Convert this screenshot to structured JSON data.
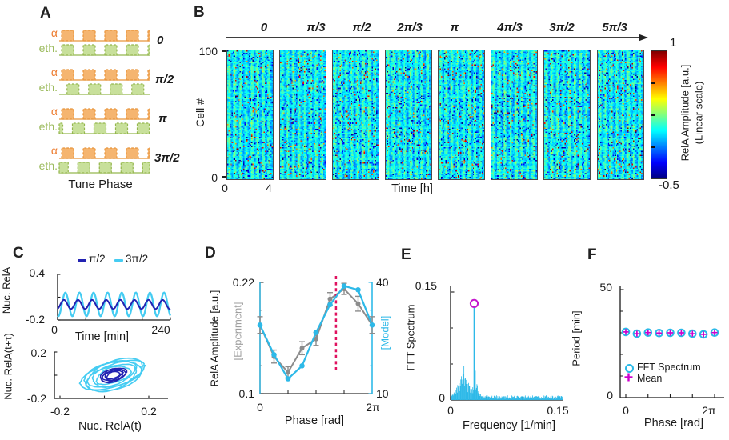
{
  "ui": {
    "panelA": {
      "label": "A",
      "alpha": "α",
      "eth": "eth.",
      "caption": "Tune Phase",
      "rows": [
        {
          "phase": "0"
        },
        {
          "phase": "π/2"
        },
        {
          "phase": "π"
        },
        {
          "phase": "3π/2"
        }
      ]
    },
    "panelB": {
      "label": "B",
      "phases": [
        "0",
        "π/3",
        "π/2",
        "2π/3",
        "π",
        "4π/3",
        "3π/2",
        "5π/3"
      ],
      "y_top": "100",
      "y_bottom": "0",
      "ylabel": "Cell #",
      "x_left": "0",
      "x_right": "4",
      "xlabel": "Time [h]",
      "cb_top": "1",
      "cb_bottom": "-0.5",
      "cb_line1": "RelA Amplitude [a.u.]",
      "cb_line2": "(Linear scale)"
    },
    "panelC": {
      "label": "C",
      "ylabel_top": "Nuc. RelA",
      "y_max": "0.4",
      "y_min": "-0.2",
      "x_left": "0",
      "x_right": "240",
      "xlabel_top": "Time [min]",
      "legend1": "π/2",
      "legend2": "3π/2",
      "ylabel_bottom": "Nuc. RelA(t+τ)",
      "y2_max": "0.2",
      "y2_min": "-0.2",
      "x2_left": "-0.2",
      "x2_right": "0.2",
      "xlabel_bottom": "Nuc. RelA(t)"
    },
    "panelD": {
      "label": "D",
      "ylabel": "RelA Amplitude [a.u.]",
      "ylabel_sub": "[Experiment]",
      "y_max": "0.22",
      "y_min": "0.1",
      "r_max": "40",
      "r_min": "10",
      "rlabel": "[Model]",
      "x_left": "0",
      "x_right": "2π",
      "xlabel": "Phase [rad]"
    },
    "panelE": {
      "label": "E",
      "ylabel": "FFT Spectrum",
      "y_max": "0.15",
      "y_min": "0",
      "x_left": "0",
      "x_right": "0.15",
      "xlabel": "Frequency [1/min]"
    },
    "panelF": {
      "label": "F",
      "ylabel": "Period [min]",
      "y_max": "50",
      "y_min": "0",
      "x_left": "0",
      "x_right": "2π",
      "xlabel": "Phase [rad]",
      "legend1": "FFT Spectrum",
      "legend2": "Mean"
    }
  },
  "colors": {
    "cyan": "#2DB9E8",
    "cyan_light": "#45CCF2",
    "navy": "#2222B2",
    "gray": "#8C8C8C",
    "gray_label": "#9E9E9E",
    "magenta_dash": "#E0115F",
    "magenta_marker": "#C516CE",
    "plus_magenta": "#CC00CC",
    "alpha_text": "#ED7D31",
    "alpha_fill": "#F5B570",
    "alpha_stroke": "#E8943A",
    "eth_text": "#9CBB5E",
    "eth_fill": "#C8E09B",
    "eth_stroke": "#94B64E",
    "axis": "#1a1a1a"
  },
  "chart_data": [
    {
      "panel": "A",
      "type": "diagram",
      "caption": "Tune Phase",
      "signals": [
        "α",
        "eth."
      ],
      "rows": [
        {
          "phase": "0",
          "eth_shift_fraction": 0
        },
        {
          "phase": "π/2",
          "eth_shift_fraction": 0.25
        },
        {
          "phase": "π",
          "eth_shift_fraction": 0.5
        },
        {
          "phase": "3π/2",
          "eth_shift_fraction": 0.75
        }
      ]
    },
    {
      "panel": "B",
      "type": "heatmap",
      "phases": [
        "0",
        "π/3",
        "π/2",
        "2π/3",
        "π",
        "4π/3",
        "3π/2",
        "5π/3"
      ],
      "rows": 100,
      "ylabel": "Cell #",
      "yrange": [
        0,
        100
      ],
      "xlabel": "Time [h]",
      "xrange": [
        0,
        4
      ],
      "colormap": "jet",
      "value_label": "RelA Amplitude [a.u.] (Linear scale)",
      "value_range": [
        -0.5,
        1
      ],
      "description": "Single-cell RelA amplitude vs time, 100 cells per stimulation phase; values mostly 0-0.3 (cyan) with sparse low (-0.5, dark blue) and high (1, red) outliers"
    },
    {
      "panel": "C-top",
      "type": "line",
      "xlabel": "Time [min]",
      "xrange": [
        0,
        240
      ],
      "ylabel": "Nuc. RelA",
      "yrange": [
        -0.2,
        0.4
      ],
      "period_min": 30,
      "series": [
        {
          "name": "3π/2",
          "color": "#45CCF2",
          "offset": 0.005,
          "amplitude": 0.155,
          "phase_shift_min": 9
        },
        {
          "name": "π/2",
          "color": "#2222B2",
          "offset": 0.005,
          "amplitude": 0.06,
          "phase_shift_min": 6
        }
      ]
    },
    {
      "panel": "C-bottom",
      "type": "phase-portrait",
      "xlabel": "Nuc. RelA(t)",
      "xrange": [
        -0.2,
        0.2
      ],
      "ylabel": "Nuc. RelA(t+τ)",
      "yrange": [
        -0.2,
        0.2
      ],
      "series": [
        {
          "name": "3π/2",
          "color": "#45CCF2",
          "center": [
            0.04,
            0.0
          ],
          "rx": 0.145,
          "ry": 0.12,
          "tilt_deg": -17,
          "loops": 6
        },
        {
          "name": "π/2",
          "color": "#2222B2",
          "center": [
            0.04,
            0.0
          ],
          "rx": 0.06,
          "ry": 0.055,
          "tilt_deg": -17,
          "loops": 5
        }
      ]
    },
    {
      "panel": "D",
      "type": "line",
      "xlabel": "Phase [rad]",
      "xrange": [
        0,
        6.2832
      ],
      "xtick_labels": [
        "0",
        "2π"
      ],
      "x": [
        0,
        0.7854,
        1.5708,
        2.3562,
        3.1416,
        3.927,
        4.7124,
        5.4978,
        6.2832
      ],
      "left_axis": {
        "label": "RelA Amplitude [a.u.]",
        "sublabel": "[Experiment]",
        "range": [
          0.1,
          0.22
        ]
      },
      "right_axis": {
        "label": "[Model]",
        "range": [
          10,
          40
        ]
      },
      "series": [
        {
          "name": "Experiment",
          "axis": "left",
          "color": "#8C8C8C",
          "values": [
            0.174,
            0.14,
            0.123,
            0.149,
            0.159,
            0.202,
            0.213,
            0.197,
            0.174
          ],
          "errors": [
            0.009,
            0.007,
            0.006,
            0.007,
            0.007,
            0.007,
            0.006,
            0.008,
            0.009
          ]
        },
        {
          "name": "Model",
          "axis": "right",
          "color": "#2DB9E8",
          "values": [
            28.5,
            20.5,
            14,
            17.5,
            26.5,
            34,
            39,
            38,
            28.5
          ],
          "full_range_error_lines_at_x": [
            0,
            6.2832
          ]
        }
      ],
      "vline": {
        "x": 4.26,
        "color": "#E0115F",
        "style": "dashed"
      }
    },
    {
      "panel": "E",
      "type": "area",
      "xlabel": "Frequency [1/min]",
      "xrange": [
        0,
        0.15
      ],
      "ylabel": "FFT Spectrum",
      "yrange": [
        0,
        0.15
      ],
      "color": "#2DB9E8",
      "peak": {
        "frequency": 0.033,
        "value": 0.134,
        "marker_color": "#C516CE"
      },
      "noise": {
        "floor": 0.005,
        "low_freq_bump_center": 0.018,
        "low_freq_bump_max": 0.035
      }
    },
    {
      "panel": "F",
      "type": "scatter",
      "xlabel": "Phase [rad]",
      "xrange": [
        0,
        6.2832
      ],
      "xtick_labels": [
        "0",
        "2π"
      ],
      "ylabel": "Period [min]",
      "yrange": [
        0,
        50
      ],
      "x": [
        0,
        0.7854,
        1.5708,
        2.3562,
        3.1416,
        3.927,
        4.7124,
        5.4978,
        6.2832
      ],
      "series": [
        {
          "name": "FFT Spectrum",
          "marker": "open-circle",
          "color": "#29B9E8",
          "values": [
            30.4,
            29.6,
            30.1,
            29.9,
            30,
            30,
            29.6,
            29.3,
            30.1
          ]
        },
        {
          "name": "Mean",
          "marker": "plus",
          "color": "#CC00CC",
          "values": [
            30.4,
            29.6,
            30.1,
            29.9,
            30,
            30,
            29.6,
            29.3,
            30.1
          ]
        }
      ]
    }
  ]
}
